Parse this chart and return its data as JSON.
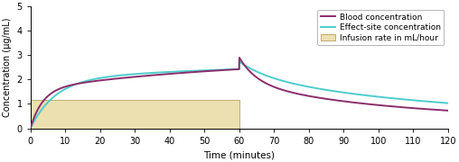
{
  "xlim": [
    0,
    120
  ],
  "ylim": [
    0,
    5
  ],
  "xticks": [
    0,
    10,
    20,
    30,
    40,
    50,
    60,
    70,
    80,
    90,
    100,
    110,
    120
  ],
  "yticks": [
    0,
    1,
    2,
    3,
    4,
    5
  ],
  "xlabel": "Time (minutes)",
  "ylabel": "Concentration (μg/mL)",
  "blood_color": "#8B2D6B",
  "effect_color": "#4DCCCC",
  "infusion_color": "#EDE0B0",
  "infusion_edge_color": "#B8A060",
  "blood_linewidth": 1.4,
  "effect_linewidth": 1.4,
  "legend_labels": [
    "Blood concentration",
    "Effect-site concentration",
    "Infusion rate in mL/hour"
  ],
  "infusion_start": 0,
  "infusion_end": 60,
  "infusion_height": 1.15,
  "background_color": "#ffffff",
  "figsize": [
    5.08,
    1.8
  ],
  "dpi": 100
}
